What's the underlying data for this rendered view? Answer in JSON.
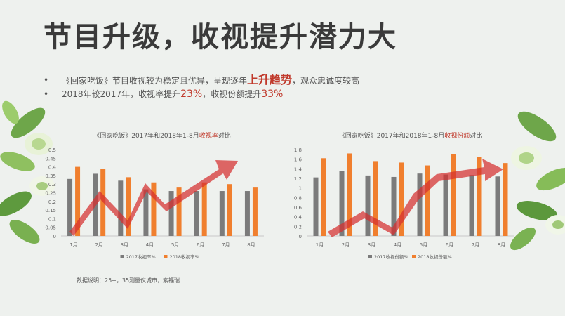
{
  "title": "节目升级，收视提升潜力大",
  "bullets": [
    {
      "marker": "•",
      "parts": [
        "《回家吃饭》节目收视较为稳定且优异，呈现逐年",
        "上升趋势",
        "，观众忠诚度较高"
      ]
    },
    {
      "marker": "•",
      "parts": [
        "2018年较2017年，收视率提升",
        "23%",
        "，收视份额提升",
        "33%"
      ]
    }
  ],
  "note": "数据说明：25+，35测量仪城市，索福瑞",
  "colors": {
    "s2017": "#7b7b7b",
    "s2018": "#f07f2e",
    "arrow": "#d62f2f",
    "highlight": "#c0392b"
  },
  "chart_data": [
    {
      "type": "bar",
      "title_prefix": "《回家吃饭》2017年和2018年1-8月",
      "title_highlight": "收视率",
      "title_suffix": "对比",
      "categories": [
        "1月",
        "2月",
        "3月",
        "4月",
        "5月",
        "6月",
        "7月",
        "8月"
      ],
      "series": [
        {
          "name": "2017收视率%",
          "values": [
            0.33,
            0.36,
            0.32,
            0.27,
            0.26,
            0.26,
            0.26,
            0.26
          ]
        },
        {
          "name": "2018收视率%",
          "values": [
            0.4,
            0.39,
            0.34,
            0.31,
            0.28,
            0.31,
            0.3,
            0.28
          ]
        }
      ],
      "ylim": [
        0,
        0.5
      ],
      "yticks": [
        "0",
        "0.05",
        "0.1",
        "0.15",
        "0.2",
        "0.25",
        "0.3",
        "0.35",
        "0.4",
        "0.45",
        "0.5"
      ],
      "legend": "bottom",
      "grid": false,
      "trend_arrow": true
    },
    {
      "type": "bar",
      "title_prefix": "《回家吃饭》2017年和2018年1-8月",
      "title_highlight": "收视份额",
      "title_suffix": "对比",
      "categories": [
        "1月",
        "2月",
        "3月",
        "4月",
        "5月",
        "6月",
        "7月",
        "8月"
      ],
      "series": [
        {
          "name": "2017收视份额%",
          "values": [
            1.22,
            1.35,
            1.26,
            1.23,
            1.3,
            1.28,
            1.27,
            1.24
          ]
        },
        {
          "name": "2018收视份额%",
          "values": [
            1.62,
            1.72,
            1.56,
            1.53,
            1.47,
            1.7,
            1.64,
            1.52
          ]
        }
      ],
      "ylim": [
        0,
        1.8
      ],
      "yticks": [
        "0",
        "0.2",
        "0.4",
        "0.6",
        "0.8",
        "1",
        "1.2",
        "1.4",
        "1.6",
        "1.8"
      ],
      "legend": "bottom",
      "grid": false,
      "trend_arrow": true
    }
  ]
}
